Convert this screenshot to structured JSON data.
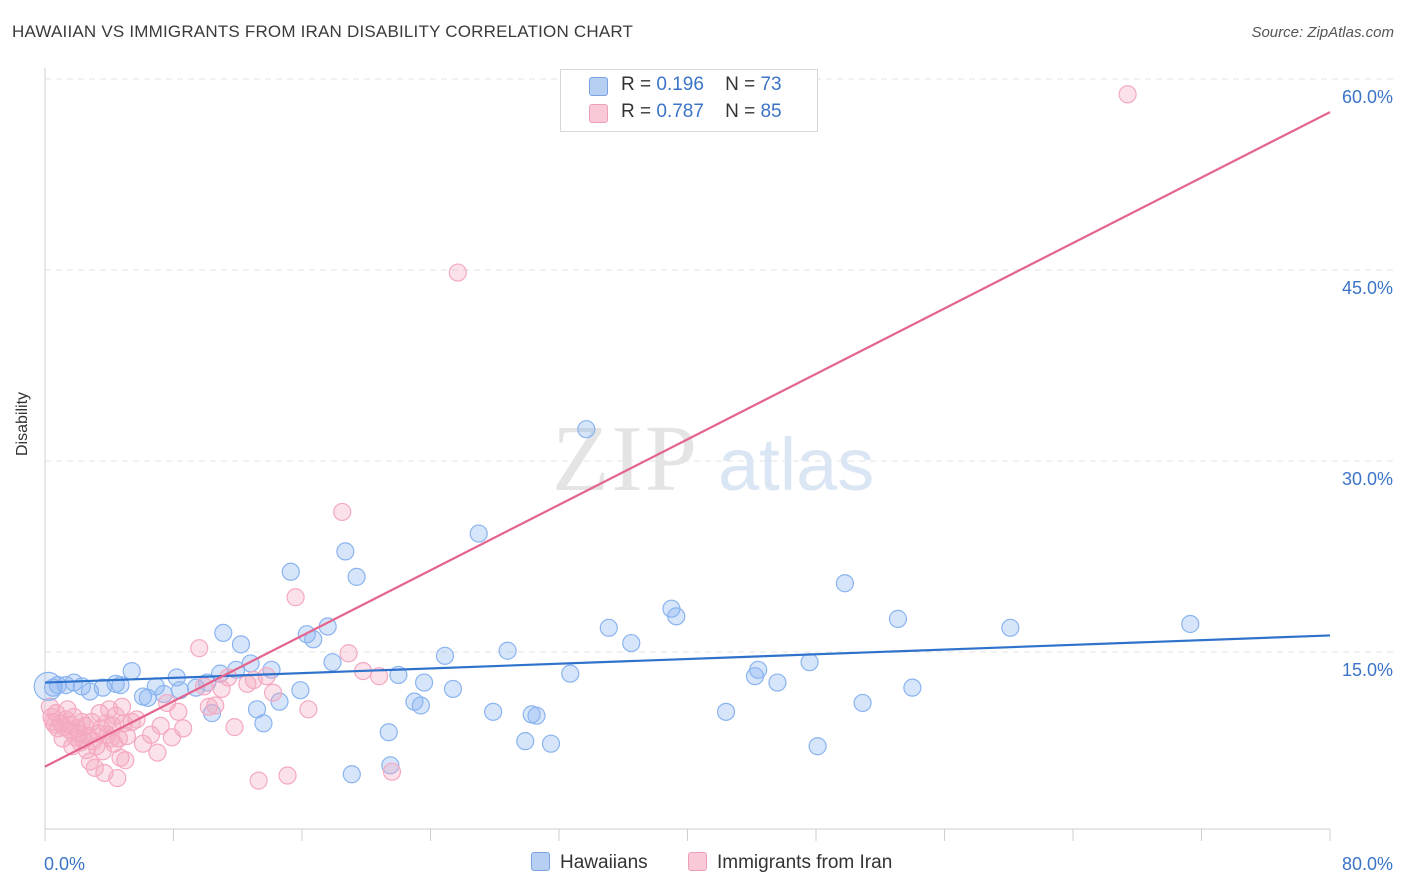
{
  "title": "HAWAIIAN VS IMMIGRANTS FROM IRAN DISABILITY CORRELATION CHART",
  "source": "Source: ZipAtlas.com",
  "watermark": {
    "zip": "ZIP",
    "atlas": "atlas"
  },
  "legend_top": [
    {
      "r_label": "R =",
      "r": "0.196",
      "n_label": "N =",
      "n": "73"
    },
    {
      "r_label": "R =",
      "r": "0.787",
      "n_label": "N =",
      "n": "85"
    }
  ],
  "chart_data": {
    "type": "scatter",
    "ylabel": "Disability",
    "xlabel": "",
    "xlim": [
      0,
      80
    ],
    "ylim": [
      0,
      63
    ],
    "x_tick_labels": [
      "0.0%",
      "80.0%"
    ],
    "y_ticks": [
      15,
      30,
      45,
      60
    ],
    "y_tick_labels": [
      "15.0%",
      "30.0%",
      "45.0%",
      "60.0%"
    ],
    "grid": true,
    "legend_position": "bottom-center",
    "series": [
      {
        "name": "Hawaiians",
        "color": "#8ab4f0",
        "line_color": "#2e72cc",
        "trend": [
          [
            0,
            12.6
          ],
          [
            80,
            16.3
          ]
        ],
        "points": [
          [
            0.5,
            12.2
          ],
          [
            0.8,
            12.4
          ],
          [
            1.3,
            12.4
          ],
          [
            1.8,
            12.6
          ],
          [
            2.3,
            12.3
          ],
          [
            2.8,
            11.9
          ],
          [
            3.6,
            12.2
          ],
          [
            4.4,
            12.5
          ],
          [
            4.7,
            12.4
          ],
          [
            5.4,
            13.5
          ],
          [
            6.1,
            11.5
          ],
          [
            6.4,
            11.4
          ],
          [
            6.9,
            12.3
          ],
          [
            7.4,
            11.7
          ],
          [
            8.2,
            13.0
          ],
          [
            8.4,
            12.0
          ],
          [
            9.4,
            12.2
          ],
          [
            10.1,
            12.6
          ],
          [
            10.4,
            10.2
          ],
          [
            10.9,
            13.3
          ],
          [
            11.1,
            16.5
          ],
          [
            11.9,
            13.6
          ],
          [
            12.2,
            15.6
          ],
          [
            12.8,
            14.1
          ],
          [
            13.2,
            10.5
          ],
          [
            13.6,
            9.4
          ],
          [
            14.1,
            13.6
          ],
          [
            14.6,
            11.1
          ],
          [
            15.3,
            21.3
          ],
          [
            15.9,
            12.0
          ],
          [
            16.3,
            16.4
          ],
          [
            16.7,
            16.0
          ],
          [
            17.6,
            17.0
          ],
          [
            17.9,
            14.2
          ],
          [
            18.7,
            22.9
          ],
          [
            19.4,
            20.9
          ],
          [
            19.1,
            5.4
          ],
          [
            21.5,
            6.1
          ],
          [
            21.4,
            8.7
          ],
          [
            22.0,
            13.2
          ],
          [
            23.0,
            11.1
          ],
          [
            23.6,
            12.6
          ],
          [
            23.4,
            10.8
          ],
          [
            24.9,
            14.7
          ],
          [
            25.4,
            12.1
          ],
          [
            27.0,
            24.3
          ],
          [
            27.9,
            10.3
          ],
          [
            28.8,
            15.1
          ],
          [
            29.9,
            8.0
          ],
          [
            30.3,
            10.1
          ],
          [
            30.6,
            10.0
          ],
          [
            31.5,
            7.8
          ],
          [
            32.7,
            13.3
          ],
          [
            33.7,
            32.5
          ],
          [
            35.1,
            16.9
          ],
          [
            36.5,
            15.7
          ],
          [
            39.0,
            18.4
          ],
          [
            39.3,
            17.8
          ],
          [
            42.4,
            10.3
          ],
          [
            44.2,
            13.1
          ],
          [
            44.4,
            13.6
          ],
          [
            45.6,
            12.6
          ],
          [
            47.6,
            14.2
          ],
          [
            48.1,
            7.6
          ],
          [
            49.8,
            20.4
          ],
          [
            50.9,
            11.0
          ],
          [
            53.1,
            17.6
          ],
          [
            54.0,
            12.2
          ],
          [
            60.1,
            16.9
          ],
          [
            71.3,
            17.2
          ]
        ]
      },
      {
        "name": "Immigrants from Iran",
        "color": "#f4a9c0",
        "line_color": "#e3648d",
        "trend": [
          [
            0,
            6.0
          ],
          [
            80,
            57.4
          ]
        ],
        "points": [
          [
            0.3,
            10.7
          ],
          [
            0.4,
            9.9
          ],
          [
            0.5,
            9.5
          ],
          [
            0.6,
            9.3
          ],
          [
            0.7,
            10.2
          ],
          [
            0.8,
            9.0
          ],
          [
            1.0,
            9.4
          ],
          [
            1.1,
            8.2
          ],
          [
            1.2,
            9.1
          ],
          [
            1.3,
            9.7
          ],
          [
            1.4,
            10.5
          ],
          [
            1.5,
            8.9
          ],
          [
            1.6,
            9.3
          ],
          [
            1.7,
            7.6
          ],
          [
            1.8,
            9.9
          ],
          [
            1.9,
            8.3
          ],
          [
            2.0,
            9.0
          ],
          [
            2.1,
            8.6
          ],
          [
            2.2,
            7.9
          ],
          [
            2.3,
            9.5
          ],
          [
            2.4,
            8.1
          ],
          [
            2.5,
            9.2
          ],
          [
            2.6,
            7.3
          ],
          [
            2.7,
            8.4
          ],
          [
            2.8,
            6.4
          ],
          [
            2.9,
            9.5
          ],
          [
            3.0,
            8.0
          ],
          [
            3.1,
            5.9
          ],
          [
            3.2,
            7.6
          ],
          [
            3.3,
            8.6
          ],
          [
            3.4,
            10.2
          ],
          [
            3.5,
            9.0
          ],
          [
            3.6,
            7.2
          ],
          [
            3.7,
            5.5
          ],
          [
            3.8,
            9.4
          ],
          [
            3.9,
            8.5
          ],
          [
            4.0,
            10.5
          ],
          [
            4.1,
            8.2
          ],
          [
            4.2,
            9.2
          ],
          [
            4.3,
            7.8
          ],
          [
            4.4,
            10.0
          ],
          [
            4.5,
            5.1
          ],
          [
            4.6,
            8.2
          ],
          [
            4.7,
            6.7
          ],
          [
            4.8,
            10.7
          ],
          [
            4.9,
            9.4
          ],
          [
            5.0,
            6.5
          ],
          [
            5.1,
            8.4
          ],
          [
            5.4,
            9.5
          ],
          [
            5.7,
            9.7
          ],
          [
            6.1,
            7.8
          ],
          [
            6.6,
            8.5
          ],
          [
            7.0,
            7.1
          ],
          [
            7.2,
            9.2
          ],
          [
            7.6,
            11.0
          ],
          [
            7.9,
            8.3
          ],
          [
            8.3,
            10.3
          ],
          [
            8.6,
            9.0
          ],
          [
            9.6,
            15.3
          ],
          [
            9.9,
            12.3
          ],
          [
            10.2,
            10.7
          ],
          [
            10.6,
            10.8
          ],
          [
            11.0,
            12.1
          ],
          [
            11.4,
            13.0
          ],
          [
            11.8,
            9.1
          ],
          [
            12.6,
            12.5
          ],
          [
            13.0,
            12.8
          ],
          [
            13.3,
            4.9
          ],
          [
            13.8,
            13.1
          ],
          [
            14.2,
            11.8
          ],
          [
            15.1,
            5.3
          ],
          [
            15.6,
            19.3
          ],
          [
            16.4,
            10.5
          ],
          [
            18.5,
            26.0
          ],
          [
            18.9,
            14.9
          ],
          [
            19.8,
            13.5
          ],
          [
            20.8,
            13.1
          ],
          [
            21.6,
            5.6
          ],
          [
            25.7,
            44.8
          ],
          [
            67.4,
            58.8
          ]
        ]
      }
    ]
  }
}
